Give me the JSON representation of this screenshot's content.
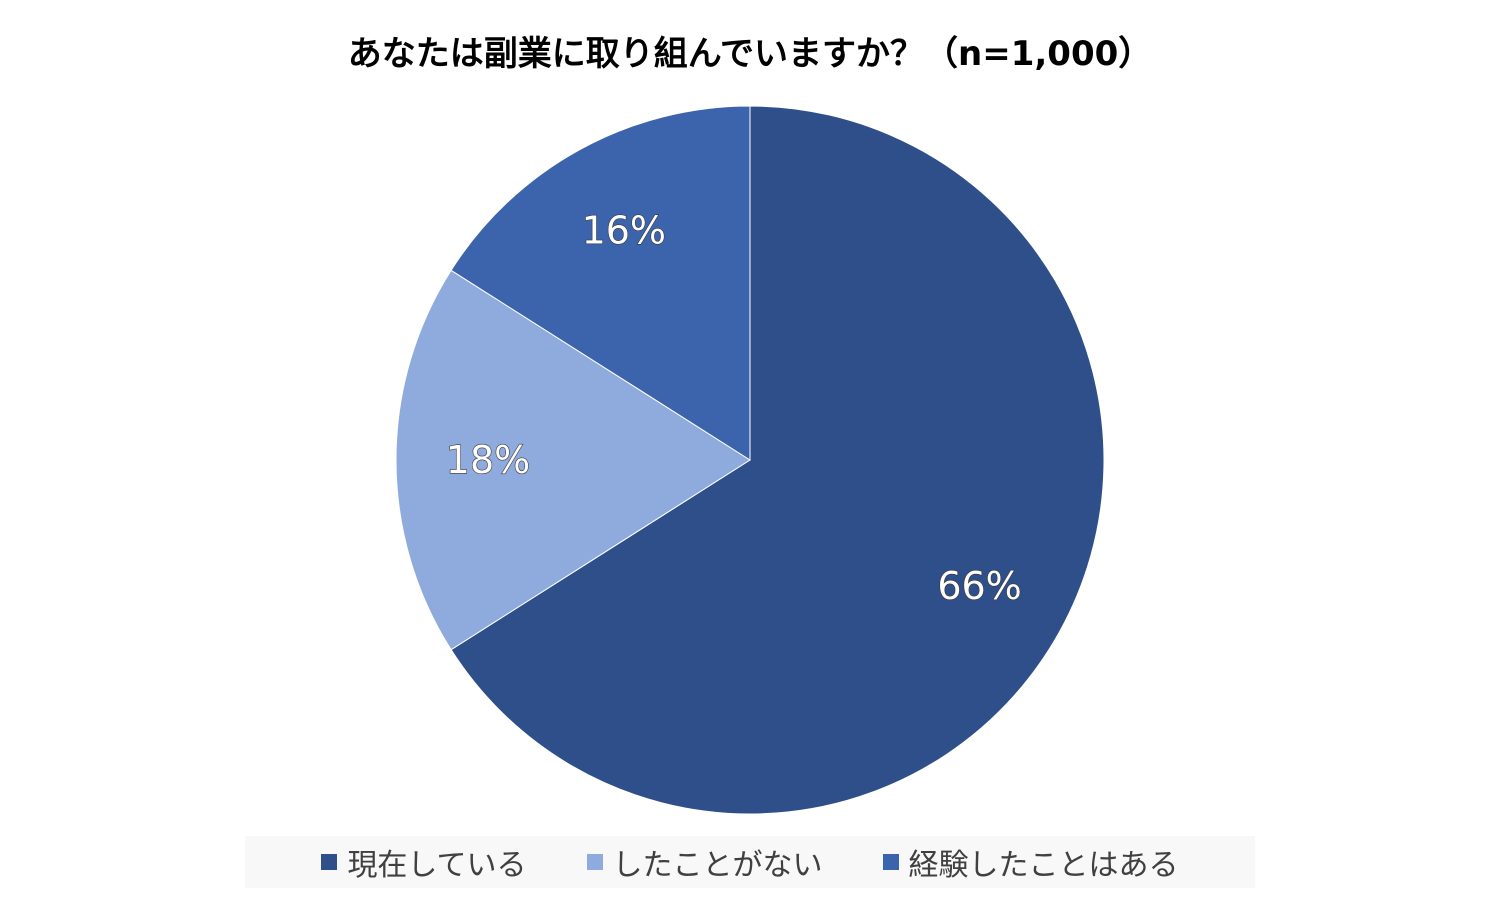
{
  "chart_data": {
    "type": "pie",
    "title": "あなたは副業に取り組んでいますか？（n=1,000）",
    "categories": [
      "現在している",
      "したことがない",
      "経験したことはある"
    ],
    "values": [
      66,
      18,
      16
    ],
    "value_labels": [
      "66%",
      "18%",
      "16%"
    ],
    "colors": [
      "#2F4F8A",
      "#8FAADC",
      "#3C64AC"
    ],
    "start_angle_deg": 0,
    "direction": "clockwise",
    "legend_position": "bottom"
  }
}
